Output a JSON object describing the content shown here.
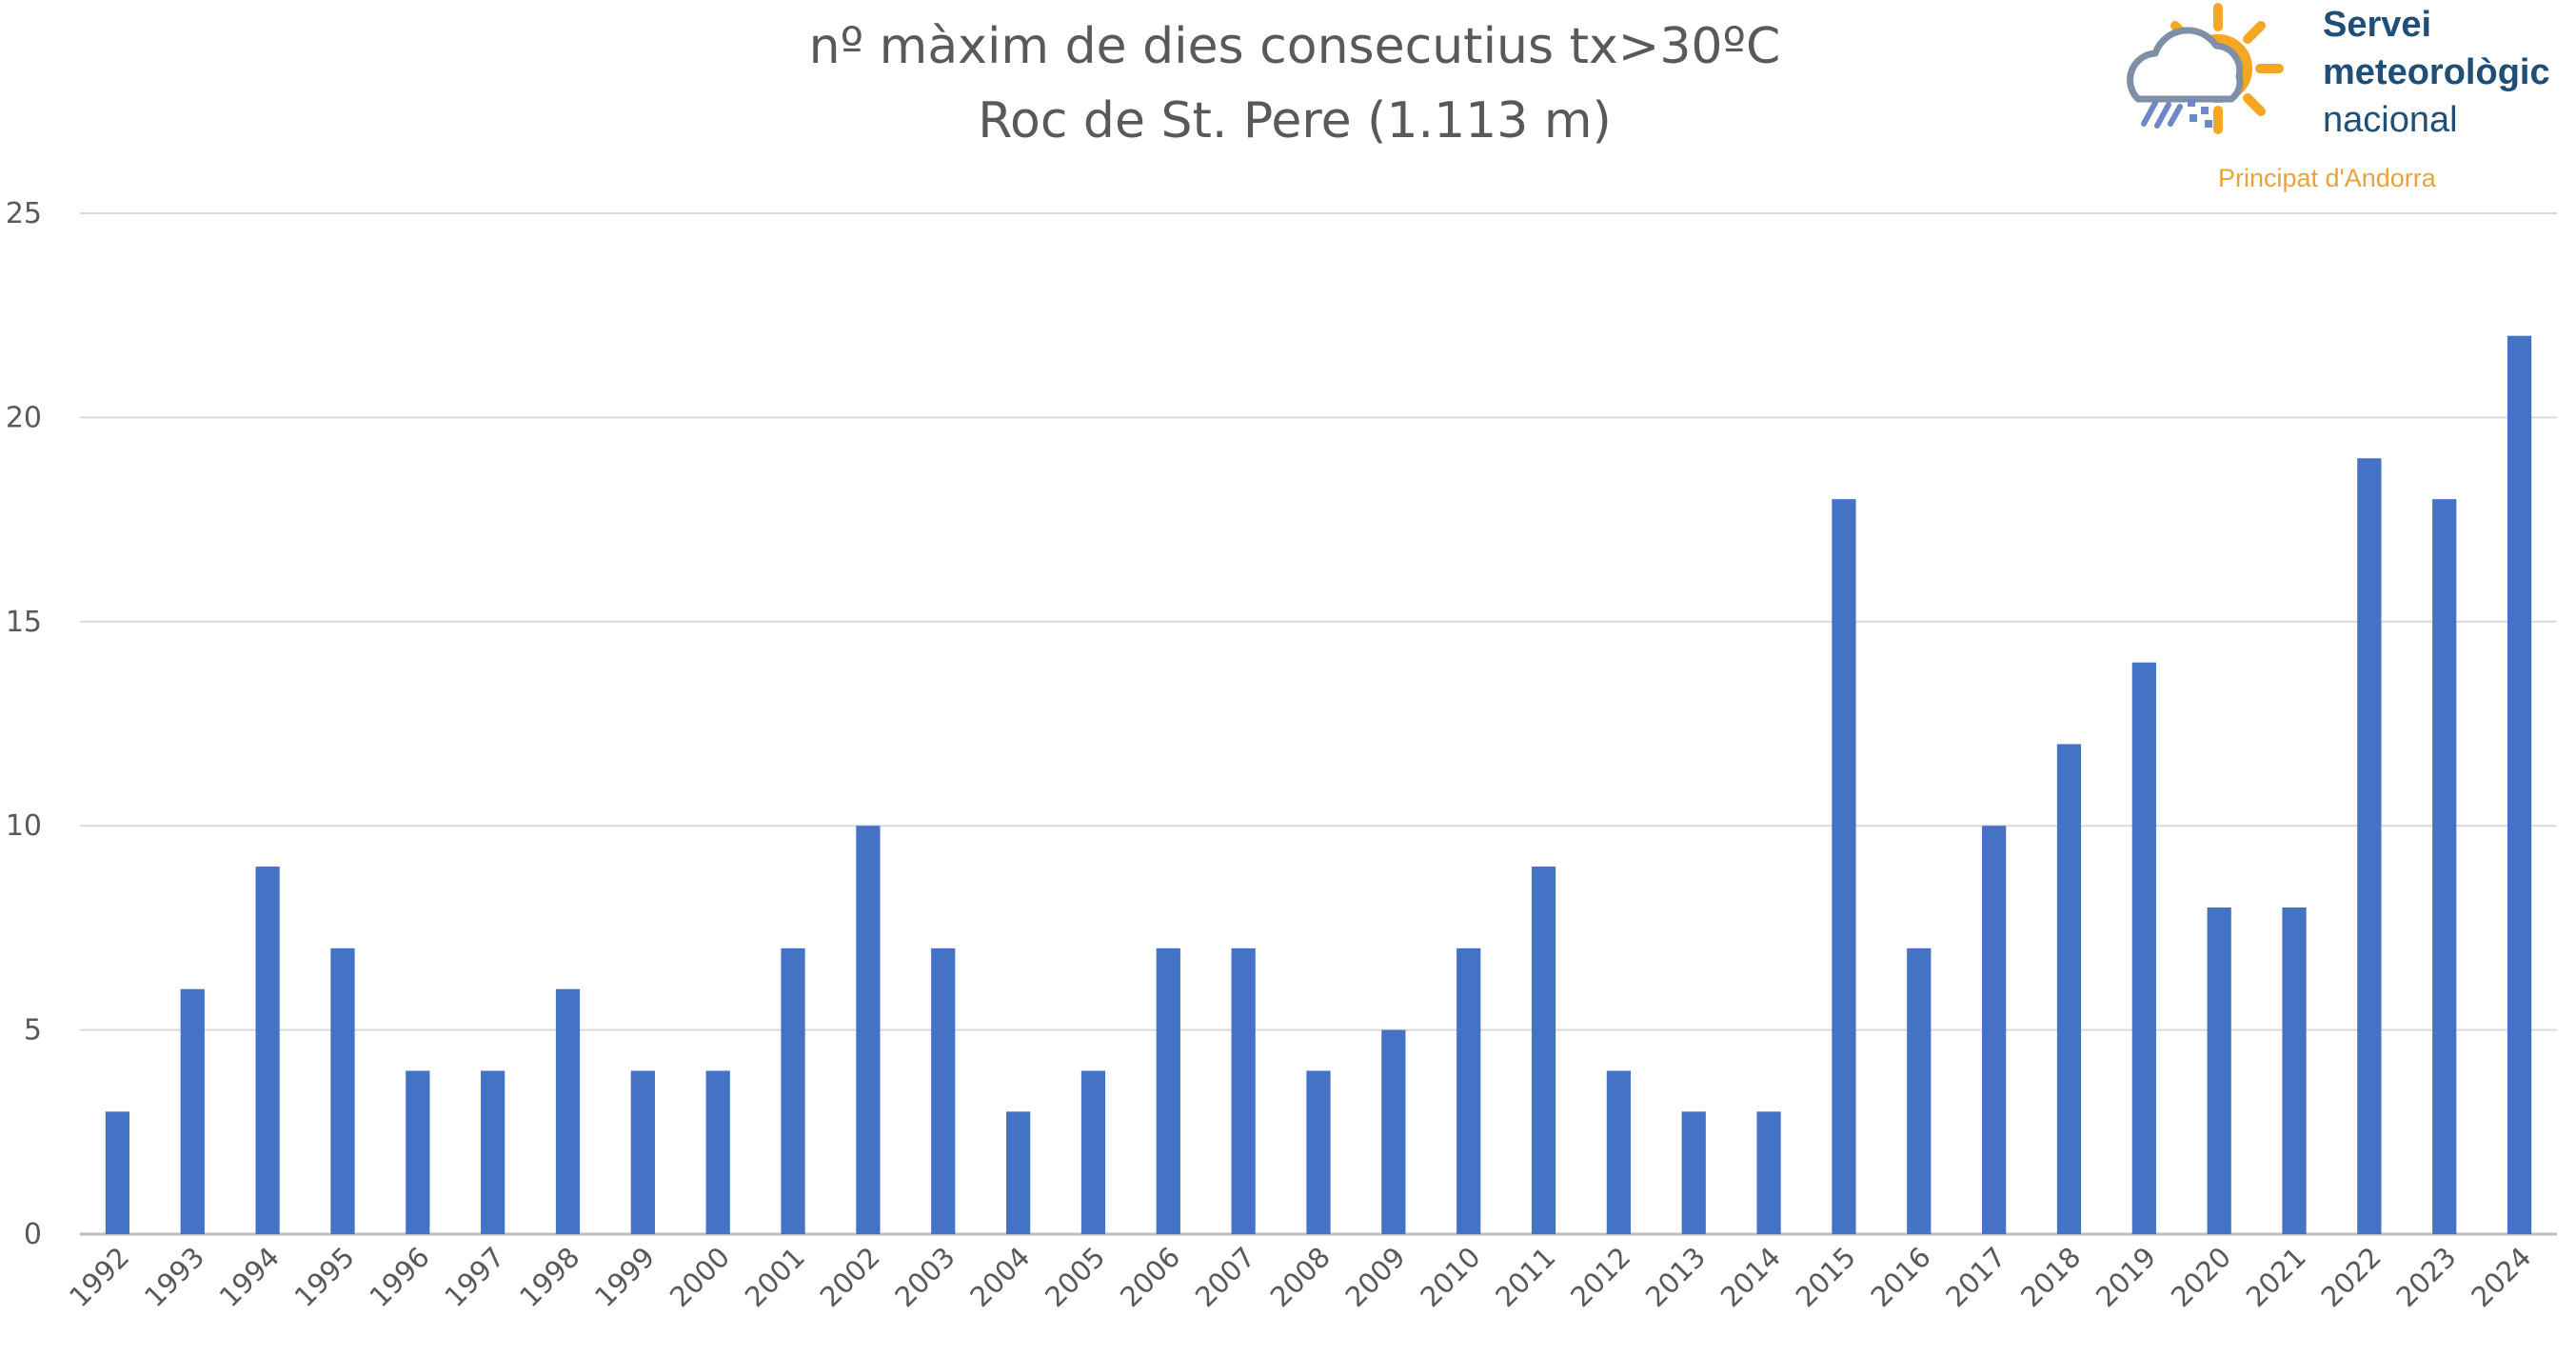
{
  "chart_data": {
    "type": "bar",
    "title": "nº màxim de dies consecutius tx>30ºC",
    "subtitle": "Roc de St. Pere (1.113 m)",
    "xlabel": "",
    "ylabel": "",
    "ylim": [
      0,
      25
    ],
    "yticks": [
      0,
      5,
      10,
      15,
      20,
      25
    ],
    "grid": true,
    "legend": "none",
    "bar_color": "#4472c4",
    "categories": [
      "1992",
      "1993",
      "1994",
      "1995",
      "1996",
      "1997",
      "1998",
      "1999",
      "2000",
      "2001",
      "2002",
      "2003",
      "2004",
      "2005",
      "2006",
      "2007",
      "2008",
      "2009",
      "2010",
      "2011",
      "2012",
      "2013",
      "2014",
      "2015",
      "2016",
      "2017",
      "2018",
      "2019",
      "2020",
      "2021",
      "2022",
      "2023",
      "2024"
    ],
    "values": [
      3,
      6,
      9,
      7,
      4,
      4,
      6,
      4,
      4,
      7,
      10,
      7,
      3,
      4,
      7,
      7,
      4,
      5,
      7,
      9,
      4,
      3,
      3,
      18,
      7,
      10,
      12,
      14,
      8,
      8,
      19,
      18,
      22
    ]
  },
  "logo": {
    "line1": "Servei",
    "line2": "meteorològic",
    "line3": "nacional",
    "subline": "Principat d'Andorra",
    "sun_color": "#f5a623",
    "cloud_color": "#7f8fa6",
    "text_color": "#1f4e79",
    "sub_color": "#e8a33d"
  }
}
